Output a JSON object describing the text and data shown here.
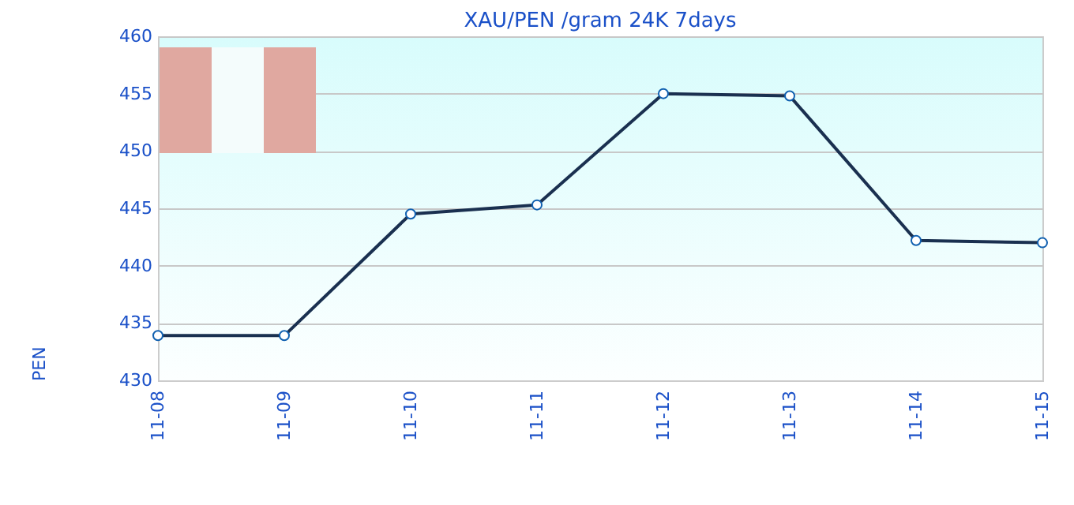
{
  "chart_data": {
    "type": "line",
    "title": "XAU/PEN /gram 24K 7days",
    "ylabel": "PEN",
    "categories": [
      "11-08",
      "11-09",
      "11-10",
      "11-11",
      "11-12",
      "11-13",
      "11-14",
      "11-15"
    ],
    "series": [
      {
        "color": "#1a3050",
        "values": [
          433.9,
          433.9,
          444.5,
          445.3,
          455.0,
          454.8,
          442.2,
          442.0
        ]
      }
    ],
    "ylim": [
      430,
      460
    ],
    "yticks": [
      430,
      435,
      440,
      445,
      450,
      455,
      460
    ],
    "grid": "y",
    "marker": "circle"
  }
}
